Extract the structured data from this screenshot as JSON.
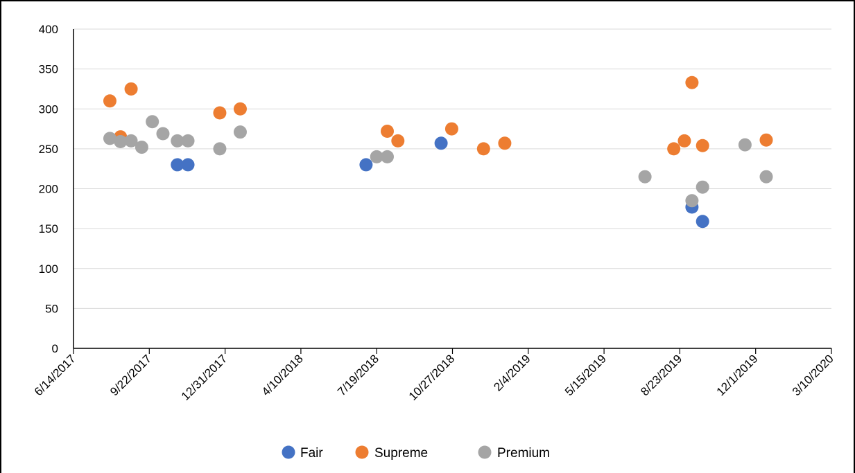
{
  "chart_data": {
    "type": "scatter",
    "x_axis": {
      "scale": "date",
      "range": [
        "6/14/2017",
        "3/10/2020"
      ],
      "tick_labels": [
        "6/14/2017",
        "9/22/2017",
        "12/31/2017",
        "4/10/2018",
        "7/19/2018",
        "10/27/2018",
        "2/4/2019",
        "5/15/2019",
        "8/23/2019",
        "12/1/2019",
        "3/10/2020"
      ]
    },
    "y_axis": {
      "range": [
        0,
        400
      ],
      "tick_labels": [
        "0",
        "50",
        "100",
        "150",
        "200",
        "250",
        "300",
        "350",
        "400"
      ]
    },
    "grid": "horizontal",
    "legend_position": "bottom",
    "series": [
      {
        "name": "Fair",
        "color": "#4472c4",
        "points": [
          {
            "x": "10/29/2017",
            "y": 230
          },
          {
            "x": "11/12/2017",
            "y": 230
          },
          {
            "x": "7/5/2018",
            "y": 230
          },
          {
            "x": "10/12/2018",
            "y": 257
          },
          {
            "x": "9/8/2019",
            "y": 177
          },
          {
            "x": "9/22/2019",
            "y": 159
          }
        ]
      },
      {
        "name": "Supreme",
        "color": "#ed7d31",
        "points": [
          {
            "x": "8/1/2017",
            "y": 310
          },
          {
            "x": "8/15/2017",
            "y": 265
          },
          {
            "x": "8/29/2017",
            "y": 325
          },
          {
            "x": "12/24/2017",
            "y": 295
          },
          {
            "x": "1/20/2018",
            "y": 300
          },
          {
            "x": "8/2/2018",
            "y": 272
          },
          {
            "x": "8/16/2018",
            "y": 260
          },
          {
            "x": "10/26/2018",
            "y": 275
          },
          {
            "x": "12/7/2018",
            "y": 250
          },
          {
            "x": "1/4/2019",
            "y": 257
          },
          {
            "x": "8/15/2019",
            "y": 250
          },
          {
            "x": "8/29/2019",
            "y": 260
          },
          {
            "x": "9/8/2019",
            "y": 333
          },
          {
            "x": "9/22/2019",
            "y": 254
          },
          {
            "x": "12/15/2019",
            "y": 261
          }
        ]
      },
      {
        "name": "Premium",
        "color": "#a5a5a5",
        "points": [
          {
            "x": "8/1/2017",
            "y": 263
          },
          {
            "x": "8/15/2017",
            "y": 259
          },
          {
            "x": "8/29/2017",
            "y": 260
          },
          {
            "x": "9/12/2017",
            "y": 252
          },
          {
            "x": "9/26/2017",
            "y": 284
          },
          {
            "x": "10/10/2017",
            "y": 269
          },
          {
            "x": "10/29/2017",
            "y": 260
          },
          {
            "x": "11/12/2017",
            "y": 260
          },
          {
            "x": "12/24/2017",
            "y": 250
          },
          {
            "x": "1/20/2018",
            "y": 271
          },
          {
            "x": "7/19/2018",
            "y": 240
          },
          {
            "x": "8/2/2018",
            "y": 240
          },
          {
            "x": "7/8/2019",
            "y": 215
          },
          {
            "x": "9/8/2019",
            "y": 185
          },
          {
            "x": "9/22/2019",
            "y": 202
          },
          {
            "x": "11/17/2019",
            "y": 255
          },
          {
            "x": "12/15/2019",
            "y": 215
          }
        ]
      }
    ]
  }
}
